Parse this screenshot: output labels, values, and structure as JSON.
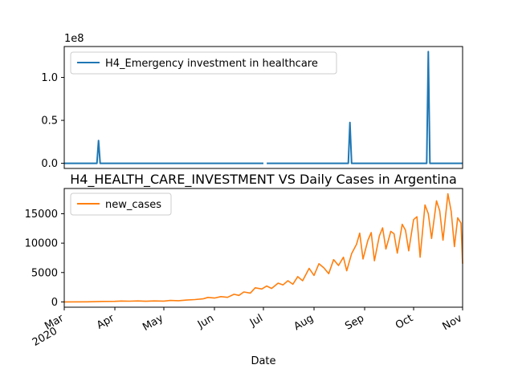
{
  "chart_data": [
    {
      "type": "line",
      "title": "",
      "xlabel": "",
      "ylabel": "",
      "offset_label": "1e8",
      "ylim": [
        -0.06,
        1.36
      ],
      "yticks": [
        {
          "v": 0.0,
          "label": "0.0"
        },
        {
          "v": 0.5,
          "label": "0.5"
        },
        {
          "v": 1.0,
          "label": "1.0"
        }
      ],
      "xlim": [
        "2020-03-01",
        "2020-10-31"
      ],
      "legend": {
        "position": "upper left"
      },
      "series": [
        {
          "name": "H4_Emergency investment in healthcare",
          "color": "#1f77b4",
          "unit_scale": 100000000,
          "points": [
            [
              "2020-03-01",
              0
            ],
            [
              "2020-03-21",
              0
            ],
            [
              "2020-03-22",
              0.265
            ],
            [
              "2020-03-23",
              0
            ],
            [
              "2020-07-01",
              0
            ],
            [
              "2020-07-02",
              null
            ],
            [
              "2020-07-03",
              0
            ],
            [
              "2020-08-22",
              0
            ],
            [
              "2020-08-23",
              0.475
            ],
            [
              "2020-08-24",
              0
            ],
            [
              "2020-10-09",
              0
            ],
            [
              "2020-10-10",
              1.3
            ],
            [
              "2020-10-11",
              0
            ],
            [
              "2020-10-31",
              0
            ]
          ]
        }
      ]
    },
    {
      "type": "line",
      "title": "H4_HEALTH_CARE_INVESTMENT VS Daily Cases in Argentina",
      "xlabel": "Date",
      "ylabel": "",
      "ylim": [
        -900,
        19300
      ],
      "yticks": [
        {
          "v": 0,
          "label": "0"
        },
        {
          "v": 5000,
          "label": "5000"
        },
        {
          "v": 10000,
          "label": "10000"
        },
        {
          "v": 15000,
          "label": "15000"
        }
      ],
      "xlim": [
        "2020-03-01",
        "2020-10-31"
      ],
      "xticks": [
        {
          "date": "2020-03-01",
          "label": "Mar",
          "sublabel": "2020"
        },
        {
          "date": "2020-04-01",
          "label": "Apr"
        },
        {
          "date": "2020-05-01",
          "label": "May"
        },
        {
          "date": "2020-06-01",
          "label": "Jun"
        },
        {
          "date": "2020-07-01",
          "label": "Jul"
        },
        {
          "date": "2020-08-01",
          "label": "Aug"
        },
        {
          "date": "2020-09-01",
          "label": "Sep"
        },
        {
          "date": "2020-10-01",
          "label": "Oct"
        },
        {
          "date": "2020-11-01",
          "label": "Nov"
        }
      ],
      "legend": {
        "position": "upper left"
      },
      "series": [
        {
          "name": "new_cases",
          "color": "#ff7f0e",
          "points": [
            [
              "2020-03-01",
              0
            ],
            [
              "2020-03-15",
              20
            ],
            [
              "2020-03-25",
              80
            ],
            [
              "2020-04-01",
              100
            ],
            [
              "2020-04-05",
              150
            ],
            [
              "2020-04-10",
              120
            ],
            [
              "2020-04-15",
              160
            ],
            [
              "2020-04-20",
              110
            ],
            [
              "2020-04-25",
              170
            ],
            [
              "2020-05-01",
              140
            ],
            [
              "2020-05-05",
              240
            ],
            [
              "2020-05-10",
              200
            ],
            [
              "2020-05-15",
              320
            ],
            [
              "2020-05-20",
              400
            ],
            [
              "2020-05-25",
              520
            ],
            [
              "2020-05-28",
              760
            ],
            [
              "2020-06-01",
              650
            ],
            [
              "2020-06-05",
              900
            ],
            [
              "2020-06-09",
              780
            ],
            [
              "2020-06-13",
              1300
            ],
            [
              "2020-06-16",
              1100
            ],
            [
              "2020-06-19",
              1700
            ],
            [
              "2020-06-23",
              1500
            ],
            [
              "2020-06-26",
              2400
            ],
            [
              "2020-06-30",
              2200
            ],
            [
              "2020-07-03",
              2700
            ],
            [
              "2020-07-06",
              2300
            ],
            [
              "2020-07-10",
              3200
            ],
            [
              "2020-07-13",
              2900
            ],
            [
              "2020-07-16",
              3600
            ],
            [
              "2020-07-19",
              3000
            ],
            [
              "2020-07-22",
              4300
            ],
            [
              "2020-07-25",
              3600
            ],
            [
              "2020-07-29",
              5700
            ],
            [
              "2020-08-01",
              4500
            ],
            [
              "2020-08-04",
              6500
            ],
            [
              "2020-08-07",
              5800
            ],
            [
              "2020-08-10",
              4800
            ],
            [
              "2020-08-13",
              7200
            ],
            [
              "2020-08-16",
              6200
            ],
            [
              "2020-08-19",
              7600
            ],
            [
              "2020-08-21",
              5300
            ],
            [
              "2020-08-24",
              8200
            ],
            [
              "2020-08-27",
              9800
            ],
            [
              "2020-08-29",
              11700
            ],
            [
              "2020-08-31",
              7300
            ],
            [
              "2020-09-03",
              10500
            ],
            [
              "2020-09-05",
              11800
            ],
            [
              "2020-09-07",
              7000
            ],
            [
              "2020-09-10",
              11200
            ],
            [
              "2020-09-12",
              12600
            ],
            [
              "2020-09-14",
              9000
            ],
            [
              "2020-09-17",
              12000
            ],
            [
              "2020-09-19",
              11600
            ],
            [
              "2020-09-21",
              8300
            ],
            [
              "2020-09-24",
              13200
            ],
            [
              "2020-09-26",
              12200
            ],
            [
              "2020-09-28",
              8700
            ],
            [
              "2020-10-01",
              14000
            ],
            [
              "2020-10-03",
              14500
            ],
            [
              "2020-10-05",
              7600
            ],
            [
              "2020-10-08",
              16500
            ],
            [
              "2020-10-10",
              15000
            ],
            [
              "2020-10-12",
              10800
            ],
            [
              "2020-10-15",
              17200
            ],
            [
              "2020-10-17",
              15500
            ],
            [
              "2020-10-19",
              10500
            ],
            [
              "2020-10-22",
              18400
            ],
            [
              "2020-10-24",
              15400
            ],
            [
              "2020-10-26",
              9400
            ],
            [
              "2020-10-28",
              14300
            ],
            [
              "2020-10-30",
              13400
            ],
            [
              "2020-10-31",
              6500
            ]
          ]
        }
      ]
    }
  ]
}
